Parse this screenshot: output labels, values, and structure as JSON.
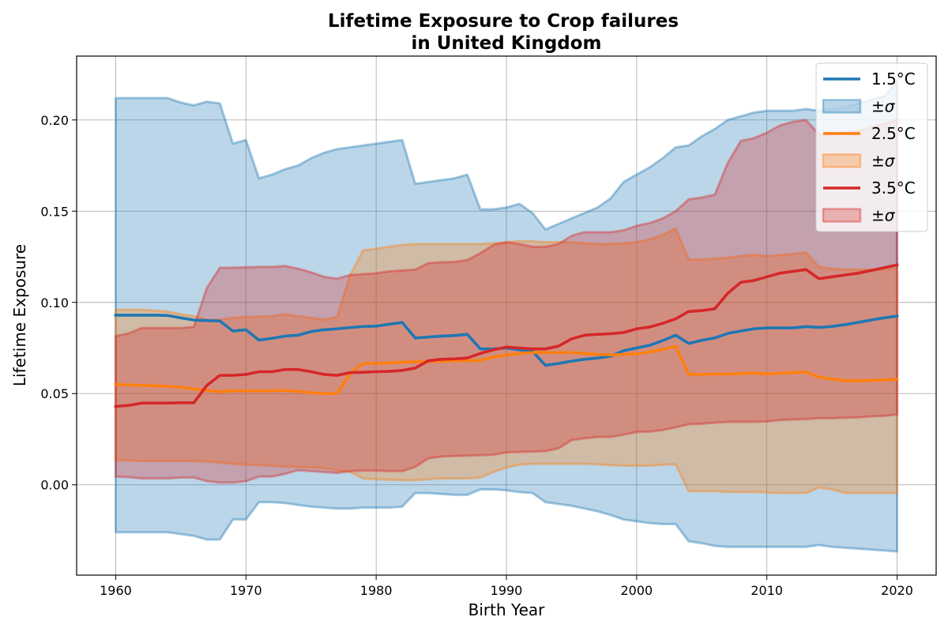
{
  "chart_data": {
    "type": "line",
    "title": [
      "Lifetime Exposure to Crop failures",
      "in United Kingdom"
    ],
    "xlabel": "Birth Year",
    "ylabel": "Lifetime Exposure",
    "xlim": [
      1957,
      2023
    ],
    "ylim": [
      -0.0495,
      0.235
    ],
    "xticks": [
      1960,
      1970,
      1980,
      1990,
      2000,
      2010,
      2020
    ],
    "yticks": [
      0.0,
      0.05,
      0.1,
      0.15,
      0.2
    ],
    "ytick_labels": [
      "0.00",
      "0.05",
      "0.10",
      "0.15",
      "0.20"
    ],
    "grid": true,
    "legend_position": "top-right",
    "legend": [
      {
        "label": "1.5°C",
        "kind": "line",
        "series": 0
      },
      {
        "label": "±σ",
        "kind": "band",
        "series": 0
      },
      {
        "label": "2.5°C",
        "kind": "line",
        "series": 1
      },
      {
        "label": "±σ",
        "kind": "band",
        "series": 1
      },
      {
        "label": "3.5°C",
        "kind": "line",
        "series": 2
      },
      {
        "label": "±σ",
        "kind": "band",
        "series": 2
      }
    ],
    "x": [
      1960,
      1961,
      1962,
      1963,
      1964,
      1965,
      1966,
      1967,
      1968,
      1969,
      1970,
      1971,
      1972,
      1973,
      1974,
      1975,
      1976,
      1977,
      1978,
      1979,
      1980,
      1981,
      1982,
      1983,
      1984,
      1985,
      1986,
      1987,
      1988,
      1989,
      1990,
      1991,
      1992,
      1993,
      1994,
      1995,
      1996,
      1997,
      1998,
      1999,
      2000,
      2001,
      2002,
      2003,
      2004,
      2005,
      2006,
      2007,
      2008,
      2009,
      2010,
      2011,
      2012,
      2013,
      2014,
      2015,
      2016,
      2017,
      2018,
      2019,
      2020
    ],
    "series": [
      {
        "name": "1.5°C",
        "color": "#1f77b4",
        "values": [
          0.093,
          0.093,
          0.093,
          0.093,
          0.0928,
          0.0915,
          0.0903,
          0.09,
          0.0898,
          0.0843,
          0.085,
          0.0793,
          0.0803,
          0.0815,
          0.082,
          0.084,
          0.085,
          0.0855,
          0.0862,
          0.0868,
          0.087,
          0.088,
          0.089,
          0.0805,
          0.081,
          0.0815,
          0.0818,
          0.0825,
          0.0745,
          0.0745,
          0.075,
          0.074,
          0.0732,
          0.0655,
          0.0665,
          0.0678,
          0.0688,
          0.0695,
          0.0705,
          0.0735,
          0.075,
          0.0765,
          0.079,
          0.082,
          0.0775,
          0.0792,
          0.0805,
          0.083,
          0.0843,
          0.0855,
          0.086,
          0.086,
          0.086,
          0.0867,
          0.0863,
          0.0868,
          0.0878,
          0.089,
          0.0903,
          0.0915,
          0.0925
        ],
        "upper": [
          0.212,
          0.212,
          0.212,
          0.212,
          0.212,
          0.2095,
          0.208,
          0.21,
          0.209,
          0.187,
          0.189,
          0.168,
          0.17,
          0.173,
          0.175,
          0.179,
          0.182,
          0.184,
          0.185,
          0.186,
          0.187,
          0.188,
          0.189,
          0.165,
          0.166,
          0.167,
          0.168,
          0.17,
          0.151,
          0.151,
          0.152,
          0.154,
          0.149,
          0.14,
          0.143,
          0.146,
          0.149,
          0.152,
          0.157,
          0.166,
          0.17,
          0.174,
          0.179,
          0.185,
          0.186,
          0.191,
          0.195,
          0.2,
          0.202,
          0.204,
          0.205,
          0.205,
          0.205,
          0.206,
          0.205,
          0.206,
          0.207,
          0.209,
          0.211,
          0.213,
          0.221
        ],
        "lower": [
          -0.026,
          -0.026,
          -0.026,
          -0.026,
          -0.026,
          -0.027,
          -0.028,
          -0.03,
          -0.03,
          -0.019,
          -0.019,
          -0.0095,
          -0.0095,
          -0.01,
          -0.011,
          -0.012,
          -0.0125,
          -0.013,
          -0.013,
          -0.0125,
          -0.0125,
          -0.0125,
          -0.012,
          -0.0045,
          -0.0045,
          -0.005,
          -0.0055,
          -0.0055,
          -0.0025,
          -0.0025,
          -0.003,
          -0.004,
          -0.0045,
          -0.0095,
          -0.0105,
          -0.0115,
          -0.013,
          -0.0145,
          -0.0165,
          -0.019,
          -0.02,
          -0.021,
          -0.0215,
          -0.0215,
          -0.031,
          -0.032,
          -0.0335,
          -0.034,
          -0.034,
          -0.034,
          -0.034,
          -0.034,
          -0.034,
          -0.034,
          -0.033,
          -0.034,
          -0.0345,
          -0.035,
          -0.0355,
          -0.036,
          -0.0365
        ]
      },
      {
        "name": "2.5°C",
        "color": "#ff7f0e",
        "values": [
          0.055,
          0.0548,
          0.0545,
          0.0543,
          0.054,
          0.0535,
          0.0525,
          0.0518,
          0.051,
          0.0515,
          0.0515,
          0.0515,
          0.0515,
          0.0518,
          0.0512,
          0.0505,
          0.05,
          0.05,
          0.061,
          0.0665,
          0.0665,
          0.0668,
          0.0672,
          0.0675,
          0.0675,
          0.0678,
          0.068,
          0.068,
          0.0682,
          0.07,
          0.0712,
          0.072,
          0.0725,
          0.0725,
          0.0725,
          0.0725,
          0.072,
          0.0715,
          0.0712,
          0.0715,
          0.0718,
          0.0728,
          0.0742,
          0.076,
          0.0605,
          0.0605,
          0.0607,
          0.0607,
          0.061,
          0.0612,
          0.0608,
          0.0612,
          0.0615,
          0.0618,
          0.059,
          0.058,
          0.057,
          0.057,
          0.0572,
          0.0575,
          0.0578
        ],
        "upper": [
          0.096,
          0.096,
          0.096,
          0.0955,
          0.095,
          0.0935,
          0.0925,
          0.0905,
          0.0905,
          0.0915,
          0.092,
          0.0922,
          0.0925,
          0.0935,
          0.0925,
          0.0915,
          0.0905,
          0.092,
          0.115,
          0.1285,
          0.1295,
          0.1305,
          0.1315,
          0.132,
          0.132,
          0.132,
          0.132,
          0.132,
          0.132,
          0.1325,
          0.133,
          0.1335,
          0.1335,
          0.133,
          0.133,
          0.133,
          0.1325,
          0.132,
          0.132,
          0.1325,
          0.133,
          0.1345,
          0.137,
          0.1405,
          0.1235,
          0.1235,
          0.124,
          0.1245,
          0.1255,
          0.126,
          0.1255,
          0.126,
          0.1265,
          0.1275,
          0.1195,
          0.1185,
          0.118,
          0.118,
          0.118,
          0.118,
          0.1185
        ],
        "lower": [
          0.0135,
          0.0133,
          0.013,
          0.013,
          0.013,
          0.013,
          0.013,
          0.0128,
          0.0122,
          0.0115,
          0.011,
          0.0108,
          0.0105,
          0.01,
          0.0098,
          0.0095,
          0.009,
          0.008,
          0.007,
          0.0035,
          0.003,
          0.0028,
          0.0025,
          0.0025,
          0.003,
          0.0035,
          0.0035,
          0.0035,
          0.004,
          0.007,
          0.0095,
          0.011,
          0.0115,
          0.0115,
          0.0115,
          0.0115,
          0.0115,
          0.0112,
          0.0108,
          0.0105,
          0.0105,
          0.0105,
          0.011,
          0.0112,
          -0.0035,
          -0.0035,
          -0.0035,
          -0.004,
          -0.004,
          -0.004,
          -0.0042,
          -0.0045,
          -0.0045,
          -0.0045,
          -0.0015,
          -0.0025,
          -0.0045,
          -0.0045,
          -0.0045,
          -0.0045,
          -0.0045
        ]
      },
      {
        "name": "3.5°C",
        "color": "#d62728",
        "values": [
          0.043,
          0.0435,
          0.0448,
          0.0448,
          0.0448,
          0.045,
          0.045,
          0.0545,
          0.06,
          0.06,
          0.0605,
          0.062,
          0.062,
          0.0632,
          0.0632,
          0.062,
          0.0605,
          0.06,
          0.0615,
          0.0617,
          0.062,
          0.0622,
          0.0627,
          0.064,
          0.068,
          0.0688,
          0.069,
          0.0695,
          0.072,
          0.074,
          0.0755,
          0.075,
          0.0745,
          0.0745,
          0.076,
          0.08,
          0.082,
          0.0825,
          0.0828,
          0.0835,
          0.0855,
          0.0865,
          0.0885,
          0.091,
          0.095,
          0.0955,
          0.0965,
          0.105,
          0.111,
          0.112,
          0.114,
          0.116,
          0.117,
          0.118,
          0.113,
          0.114,
          0.115,
          0.116,
          0.1175,
          0.119,
          0.1205
        ],
        "upper": [
          0.0815,
          0.083,
          0.086,
          0.086,
          0.086,
          0.086,
          0.0865,
          0.108,
          0.119,
          0.119,
          0.1192,
          0.1195,
          0.1195,
          0.12,
          0.1185,
          0.1165,
          0.114,
          0.113,
          0.115,
          0.1155,
          0.116,
          0.117,
          0.1175,
          0.118,
          0.1215,
          0.122,
          0.1222,
          0.1232,
          0.127,
          0.1315,
          0.133,
          0.132,
          0.1305,
          0.1305,
          0.132,
          0.1365,
          0.1385,
          0.1385,
          0.1385,
          0.1395,
          0.142,
          0.1435,
          0.146,
          0.15,
          0.1565,
          0.1575,
          0.159,
          0.1765,
          0.1885,
          0.19,
          0.193,
          0.197,
          0.199,
          0.2,
          0.192,
          0.192,
          0.193,
          0.194,
          0.196,
          0.198,
          0.2
        ],
        "lower": [
          0.0045,
          0.0042,
          0.0035,
          0.0035,
          0.0035,
          0.004,
          0.004,
          0.002,
          0.0012,
          0.0012,
          0.002,
          0.0045,
          0.0045,
          0.006,
          0.008,
          0.0075,
          0.007,
          0.0065,
          0.0075,
          0.0078,
          0.0078,
          0.0075,
          0.0075,
          0.0098,
          0.0145,
          0.0155,
          0.0158,
          0.016,
          0.0162,
          0.0165,
          0.0178,
          0.018,
          0.0182,
          0.0185,
          0.02,
          0.0245,
          0.0255,
          0.0262,
          0.0262,
          0.0275,
          0.029,
          0.0292,
          0.03,
          0.0315,
          0.0332,
          0.0335,
          0.034,
          0.0345,
          0.0345,
          0.0345,
          0.0348,
          0.0355,
          0.0358,
          0.036,
          0.0365,
          0.0365,
          0.0368,
          0.037,
          0.0375,
          0.0378,
          0.0385
        ]
      }
    ]
  }
}
